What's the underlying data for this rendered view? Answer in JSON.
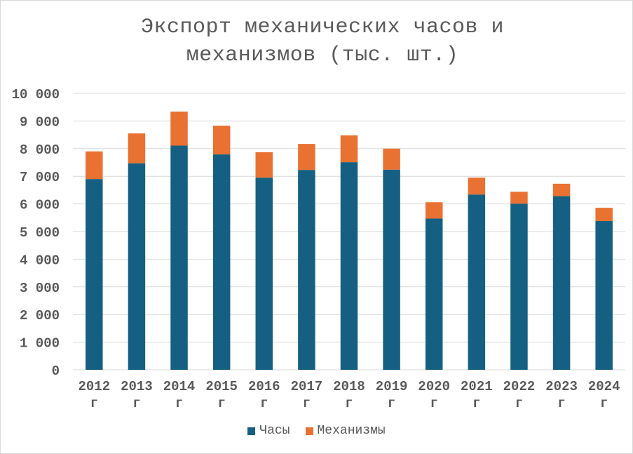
{
  "chart_data": {
    "type": "bar",
    "stacked": true,
    "title_lines": [
      "Экспорт механических часов и",
      "механизмов (тыс. шт.)"
    ],
    "categories": [
      "2012 г",
      "2013 г",
      "2014 г",
      "2015 г",
      "2016 г",
      "2017 г",
      "2018 г",
      "2019 г",
      "2020 г",
      "2021 г",
      "2022 г",
      "2023 г",
      "2024 г"
    ],
    "category_labels": [
      [
        "2012",
        "г"
      ],
      [
        "2013",
        "г"
      ],
      [
        "2014",
        "г"
      ],
      [
        "2015",
        "г"
      ],
      [
        "2016",
        "г"
      ],
      [
        "2017",
        "г"
      ],
      [
        "2018",
        "г"
      ],
      [
        "2019",
        "г"
      ],
      [
        "2020",
        "г"
      ],
      [
        "2021",
        "г"
      ],
      [
        "2022",
        "г"
      ],
      [
        "2023",
        "г"
      ],
      [
        "2024",
        "г"
      ]
    ],
    "series": [
      {
        "name": "Часы",
        "color": "#156082",
        "values": [
          6900,
          7470,
          8110,
          7790,
          6950,
          7230,
          7510,
          7240,
          5470,
          6340,
          6010,
          6280,
          5380
        ]
      },
      {
        "name": "Механизмы",
        "color": "#e97132",
        "values": [
          1000,
          1080,
          1230,
          1040,
          920,
          940,
          970,
          760,
          590,
          610,
          430,
          450,
          480
        ]
      }
    ],
    "ylim": [
      0,
      10000
    ],
    "yticks": [
      0,
      1000,
      2000,
      3000,
      4000,
      5000,
      6000,
      7000,
      8000,
      9000,
      10000
    ],
    "ytick_labels": [
      "0",
      "1 000",
      "2 000",
      "3 000",
      "4 000",
      "5 000",
      "6 000",
      "7 000",
      "8 000",
      "9 000",
      "10 000"
    ],
    "grid": true,
    "legend_position": "bottom"
  }
}
